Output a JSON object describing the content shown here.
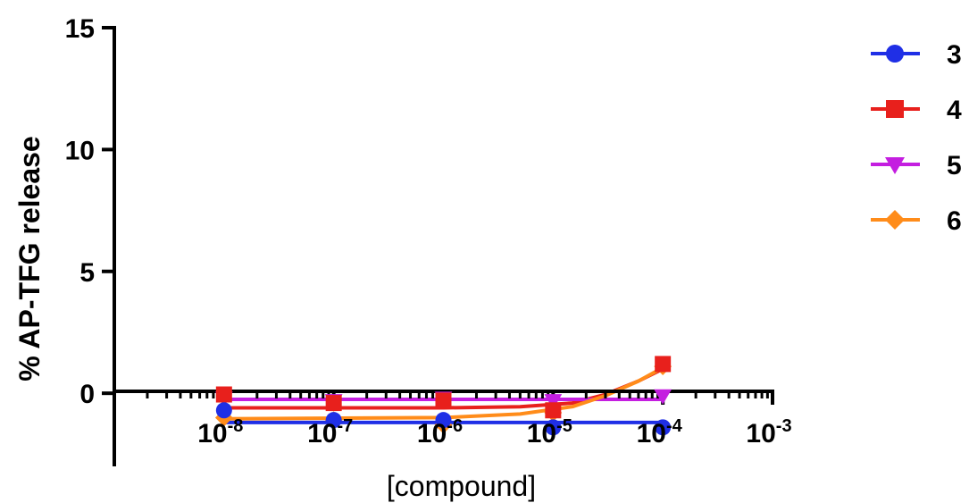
{
  "chart_data": {
    "type": "line",
    "xlabel": "[compound]",
    "ylabel": "% AP-TFG release",
    "x_scale": "log",
    "xlim": [
      1e-09,
      0.001
    ],
    "ylim": [
      -3,
      15
    ],
    "yticks": [
      0,
      5,
      10,
      15
    ],
    "xticks": [
      {
        "value": 1e-08,
        "base": "10",
        "exp": "-8"
      },
      {
        "value": 1e-07,
        "base": "10",
        "exp": "-7"
      },
      {
        "value": 1e-06,
        "base": "10",
        "exp": "-6"
      },
      {
        "value": 1e-05,
        "base": "10",
        "exp": "-5"
      },
      {
        "value": 0.0001,
        "base": "10",
        "exp": "-4"
      },
      {
        "value": 0.001,
        "base": "10",
        "exp": "-3"
      }
    ],
    "x": [
      1e-08,
      1e-07,
      1e-06,
      1e-05,
      0.0001
    ],
    "series": [
      {
        "name": "3",
        "color": "#1f2fe6",
        "marker": "circle",
        "values": [
          -0.7,
          -1.1,
          -1.1,
          -1.4,
          -1.4
        ],
        "fit": [
          [
            1e-08,
            -1.2
          ],
          [
            0.0001,
            -1.2
          ]
        ]
      },
      {
        "name": "4",
        "color": "#e8201c",
        "marker": "square",
        "values": [
          -0.05,
          -0.4,
          -0.3,
          -0.7,
          1.2
        ],
        "fit": [
          [
            1e-08,
            -0.6
          ],
          [
            1e-06,
            -0.6
          ],
          [
            5e-06,
            -0.55
          ],
          [
            1.5e-05,
            -0.4
          ],
          [
            3e-05,
            -0.05
          ],
          [
            6e-05,
            0.5
          ],
          [
            0.0001,
            1.0
          ]
        ]
      },
      {
        "name": "5",
        "color": "#c41ee0",
        "marker": "triangle-down",
        "values": [
          -0.2,
          -0.3,
          -0.2,
          -0.3,
          -0.1
        ],
        "fit": [
          [
            1e-08,
            -0.25
          ],
          [
            0.0001,
            -0.25
          ]
        ]
      },
      {
        "name": "6",
        "color": "#ff8c1a",
        "marker": "diamond",
        "values": [
          -1.0,
          -1.1,
          -1.3,
          -0.8,
          1.1
        ],
        "fit": [
          [
            1e-08,
            -1.05
          ],
          [
            1e-06,
            -1.0
          ],
          [
            5e-06,
            -0.85
          ],
          [
            1.5e-05,
            -0.55
          ],
          [
            3e-05,
            -0.1
          ],
          [
            6e-05,
            0.5
          ],
          [
            0.0001,
            1.05
          ]
        ]
      }
    ],
    "legend_position": "top-right",
    "grid": false
  }
}
